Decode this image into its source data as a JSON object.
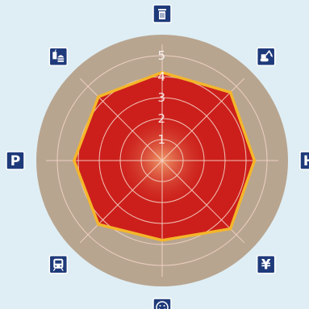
{
  "chart_data": {
    "type": "radar",
    "scale_labels": [
      "1",
      "2",
      "3",
      "4",
      "5"
    ],
    "range": [
      0,
      5
    ],
    "rings": 5,
    "axes": [
      {
        "icon": "trash-bin-icon",
        "label": "",
        "value": 4.2
      },
      {
        "icon": "excavator-icon",
        "label": "",
        "value": 4.6
      },
      {
        "icon": "hospital-icon",
        "label": "H",
        "value": 4.4
      },
      {
        "icon": "yen-icon",
        "label": "¥",
        "value": 4.6
      },
      {
        "icon": "smiley-face-icon",
        "label": "",
        "value": 3.8
      },
      {
        "icon": "train-icon",
        "label": "",
        "value": 4.3
      },
      {
        "icon": "parking-icon",
        "label": "P",
        "value": 4.2
      },
      {
        "icon": "fast-food-icon",
        "label": "",
        "value": 4.3
      }
    ],
    "grid": true,
    "colors": {
      "background": "#dfeef4",
      "disc": "#b8a590",
      "fill": "#cc1f1b",
      "fill_center": "#f09a6a",
      "outline": "#f4b62a",
      "grid": "#f4d4c8",
      "icon_bg": "#1e3a7a"
    }
  }
}
